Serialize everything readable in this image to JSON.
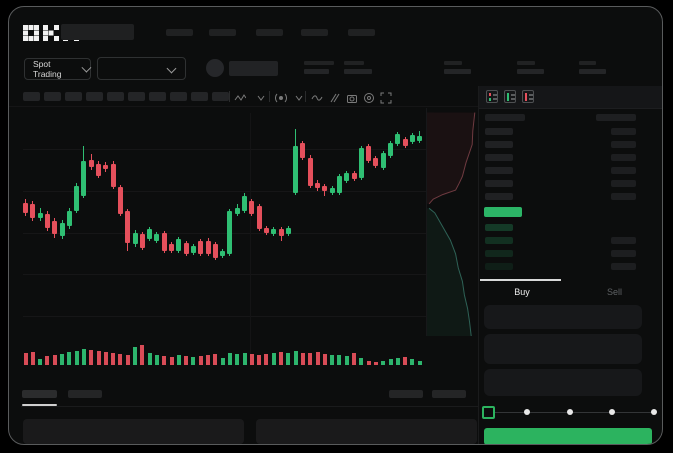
{
  "app_title": "OKX Spot Trading",
  "colors": {
    "green": "#2fbf73",
    "red": "#e5505c",
    "button_green": "#2cb35f",
    "price_bar_green": "#2cb567",
    "depth_ask_line": "#6e3a40",
    "depth_bid_line": "#2e6256",
    "tab_indicator": "#d9d9d9"
  },
  "header": {
    "logo": "OKX",
    "logo_icon": "okx-logo",
    "nav_placeholder_count": 5
  },
  "market_bar": {
    "market_selector_label": "Spot Trading",
    "pair_selector_value": "",
    "stat_pair_count": 5
  },
  "chart_toolbar": {
    "placeholder_count": 10,
    "icons": [
      "chart-type-icon",
      "chevron-down-icon",
      "indicator-icon",
      "chevron-down-icon",
      "wave-icon",
      "compare-icon",
      "camera-icon",
      "alert-icon",
      "fullscreen-icon"
    ]
  },
  "chart_data": {
    "type": "candlestick",
    "title": "",
    "price_scale": [
      0,
      100
    ],
    "gridlines_price": [
      85.0,
      65.9,
      46.8,
      28.2,
      9.1
    ],
    "candles": [
      [
        60.5,
        55.9,
        62.3,
        54.5,
        "r"
      ],
      [
        60.0,
        53.6,
        61.4,
        52.3,
        "r"
      ],
      [
        55.9,
        53.6,
        58.2,
        52.3,
        "g"
      ],
      [
        55.5,
        49.1,
        56.8,
        47.7,
        "r"
      ],
      [
        52.3,
        46.4,
        53.6,
        44.5,
        "r"
      ],
      [
        51.4,
        45.5,
        52.7,
        44.1,
        "g"
      ],
      [
        56.8,
        50.0,
        58.2,
        48.6,
        "g"
      ],
      [
        68.2,
        56.8,
        69.5,
        55.9,
        "g"
      ],
      [
        79.5,
        63.6,
        86.4,
        62.7,
        "g"
      ],
      [
        80.0,
        76.8,
        82.7,
        75.5,
        "r"
      ],
      [
        78.2,
        72.7,
        79.5,
        71.8,
        "r"
      ],
      [
        77.7,
        75.9,
        79.1,
        74.5,
        "r"
      ],
      [
        78.2,
        67.7,
        79.5,
        66.8,
        "r"
      ],
      [
        67.7,
        55.5,
        68.6,
        54.5,
        "r"
      ],
      [
        56.8,
        42.3,
        57.7,
        38.6,
        "r"
      ],
      [
        46.8,
        41.8,
        48.2,
        40.5,
        "g"
      ],
      [
        46.4,
        40.0,
        47.3,
        39.1,
        "r"
      ],
      [
        48.6,
        44.1,
        49.5,
        43.2,
        "g"
      ],
      [
        46.4,
        43.2,
        47.3,
        42.3,
        "g"
      ],
      [
        46.8,
        38.6,
        47.7,
        37.7,
        "r"
      ],
      [
        41.8,
        38.6,
        42.7,
        37.7,
        "r"
      ],
      [
        44.1,
        38.6,
        45.0,
        37.7,
        "g"
      ],
      [
        42.3,
        37.3,
        43.2,
        36.4,
        "r"
      ],
      [
        40.9,
        37.7,
        41.8,
        36.8,
        "g"
      ],
      [
        43.2,
        37.3,
        44.1,
        36.4,
        "r"
      ],
      [
        43.2,
        37.3,
        44.5,
        36.4,
        "r"
      ],
      [
        41.8,
        35.5,
        42.7,
        34.5,
        "r"
      ],
      [
        38.6,
        36.4,
        39.5,
        35.5,
        "g"
      ],
      [
        56.8,
        37.3,
        57.7,
        36.4,
        "g"
      ],
      [
        58.2,
        55.5,
        60.0,
        54.5,
        "g"
      ],
      [
        63.6,
        56.8,
        65.0,
        55.9,
        "g"
      ],
      [
        61.4,
        55.5,
        62.3,
        54.5,
        "r"
      ],
      [
        59.1,
        48.6,
        60.0,
        47.7,
        "r"
      ],
      [
        49.1,
        46.8,
        50.0,
        45.9,
        "r"
      ],
      [
        48.6,
        46.4,
        49.5,
        45.5,
        "g"
      ],
      [
        48.6,
        45.5,
        49.5,
        43.2,
        "r"
      ],
      [
        49.1,
        46.4,
        50.0,
        45.5,
        "g"
      ],
      [
        86.4,
        65.0,
        94.1,
        64.1,
        "g"
      ],
      [
        87.7,
        80.9,
        88.6,
        80.0,
        "r"
      ],
      [
        80.9,
        68.2,
        82.3,
        67.3,
        "r"
      ],
      [
        69.5,
        67.3,
        70.9,
        65.9,
        "r"
      ],
      [
        68.2,
        65.9,
        69.1,
        63.6,
        "r"
      ],
      [
        67.3,
        65.0,
        68.2,
        64.1,
        "g"
      ],
      [
        72.7,
        65.0,
        73.6,
        64.1,
        "g"
      ],
      [
        74.1,
        70.5,
        75.0,
        69.5,
        "g"
      ],
      [
        74.1,
        71.4,
        75.0,
        70.5,
        "r"
      ],
      [
        85.5,
        71.8,
        86.4,
        70.9,
        "g"
      ],
      [
        86.4,
        79.5,
        87.3,
        78.6,
        "r"
      ],
      [
        80.9,
        77.3,
        81.8,
        76.4,
        "r"
      ],
      [
        83.2,
        76.4,
        84.1,
        75.5,
        "g"
      ],
      [
        87.7,
        81.8,
        88.6,
        80.9,
        "g"
      ],
      [
        91.8,
        87.3,
        92.7,
        86.4,
        "g"
      ],
      [
        89.5,
        86.4,
        90.5,
        85.5,
        "r"
      ],
      [
        91.4,
        88.2,
        92.3,
        87.3,
        "g"
      ],
      [
        90.9,
        88.6,
        93.2,
        87.7,
        "g"
      ]
    ],
    "volume": [
      12,
      13,
      6,
      9,
      10,
      11,
      13,
      14,
      16,
      15,
      14,
      13,
      12,
      11,
      10,
      18,
      20,
      12,
      10,
      9,
      8,
      10,
      9,
      8,
      9,
      10,
      11,
      7,
      12,
      11,
      12,
      11,
      10,
      11,
      12,
      13,
      12,
      14,
      12,
      12,
      13,
      11,
      10,
      10,
      9,
      12,
      7,
      4,
      3,
      4,
      6,
      7,
      8,
      6,
      4
    ],
    "depth": {
      "asks": [
        [
          0.92,
          0.02
        ],
        [
          0.9,
          0.06
        ],
        [
          0.88,
          0.1
        ],
        [
          0.87,
          0.16
        ],
        [
          0.75,
          0.24
        ],
        [
          0.68,
          0.3
        ],
        [
          0.62,
          0.33
        ],
        [
          0.55,
          0.36
        ],
        [
          0.3,
          0.38
        ],
        [
          0.12,
          0.4
        ],
        [
          0.04,
          0.42
        ]
      ],
      "bids": [
        [
          0.04,
          0.44
        ],
        [
          0.15,
          0.46
        ],
        [
          0.25,
          0.5
        ],
        [
          0.35,
          0.54
        ],
        [
          0.45,
          0.58
        ],
        [
          0.55,
          0.64
        ],
        [
          0.6,
          0.7
        ],
        [
          0.68,
          0.76
        ],
        [
          0.72,
          0.82
        ],
        [
          0.78,
          0.88
        ],
        [
          0.82,
          0.94
        ],
        [
          0.85,
          1.0
        ]
      ]
    }
  },
  "order_book": {
    "view_icons": [
      "book-combined-icon",
      "book-bids-icon",
      "book-asks-icon"
    ],
    "ask_row_count": 6,
    "price_bar": {
      "color": "#2cb567"
    },
    "bid_rows": [
      {
        "right_bar": false,
        "fade": 0.26
      },
      {
        "right_bar": true,
        "fade": 0.2
      },
      {
        "right_bar": true,
        "fade": 0.15
      },
      {
        "right_bar": true,
        "fade": 0.1
      }
    ]
  },
  "order_form": {
    "tabs": [
      {
        "label": "Buy",
        "active": true
      },
      {
        "label": "Sell",
        "active": false
      }
    ],
    "field_count": 3,
    "slider": {
      "stop_count": 5,
      "active_stop": 0
    },
    "submit_label": ""
  },
  "bottom_panel": {
    "left_tab_count": 2,
    "active_tab": 0,
    "right_placeholder_count": 2,
    "block_count": 2
  }
}
